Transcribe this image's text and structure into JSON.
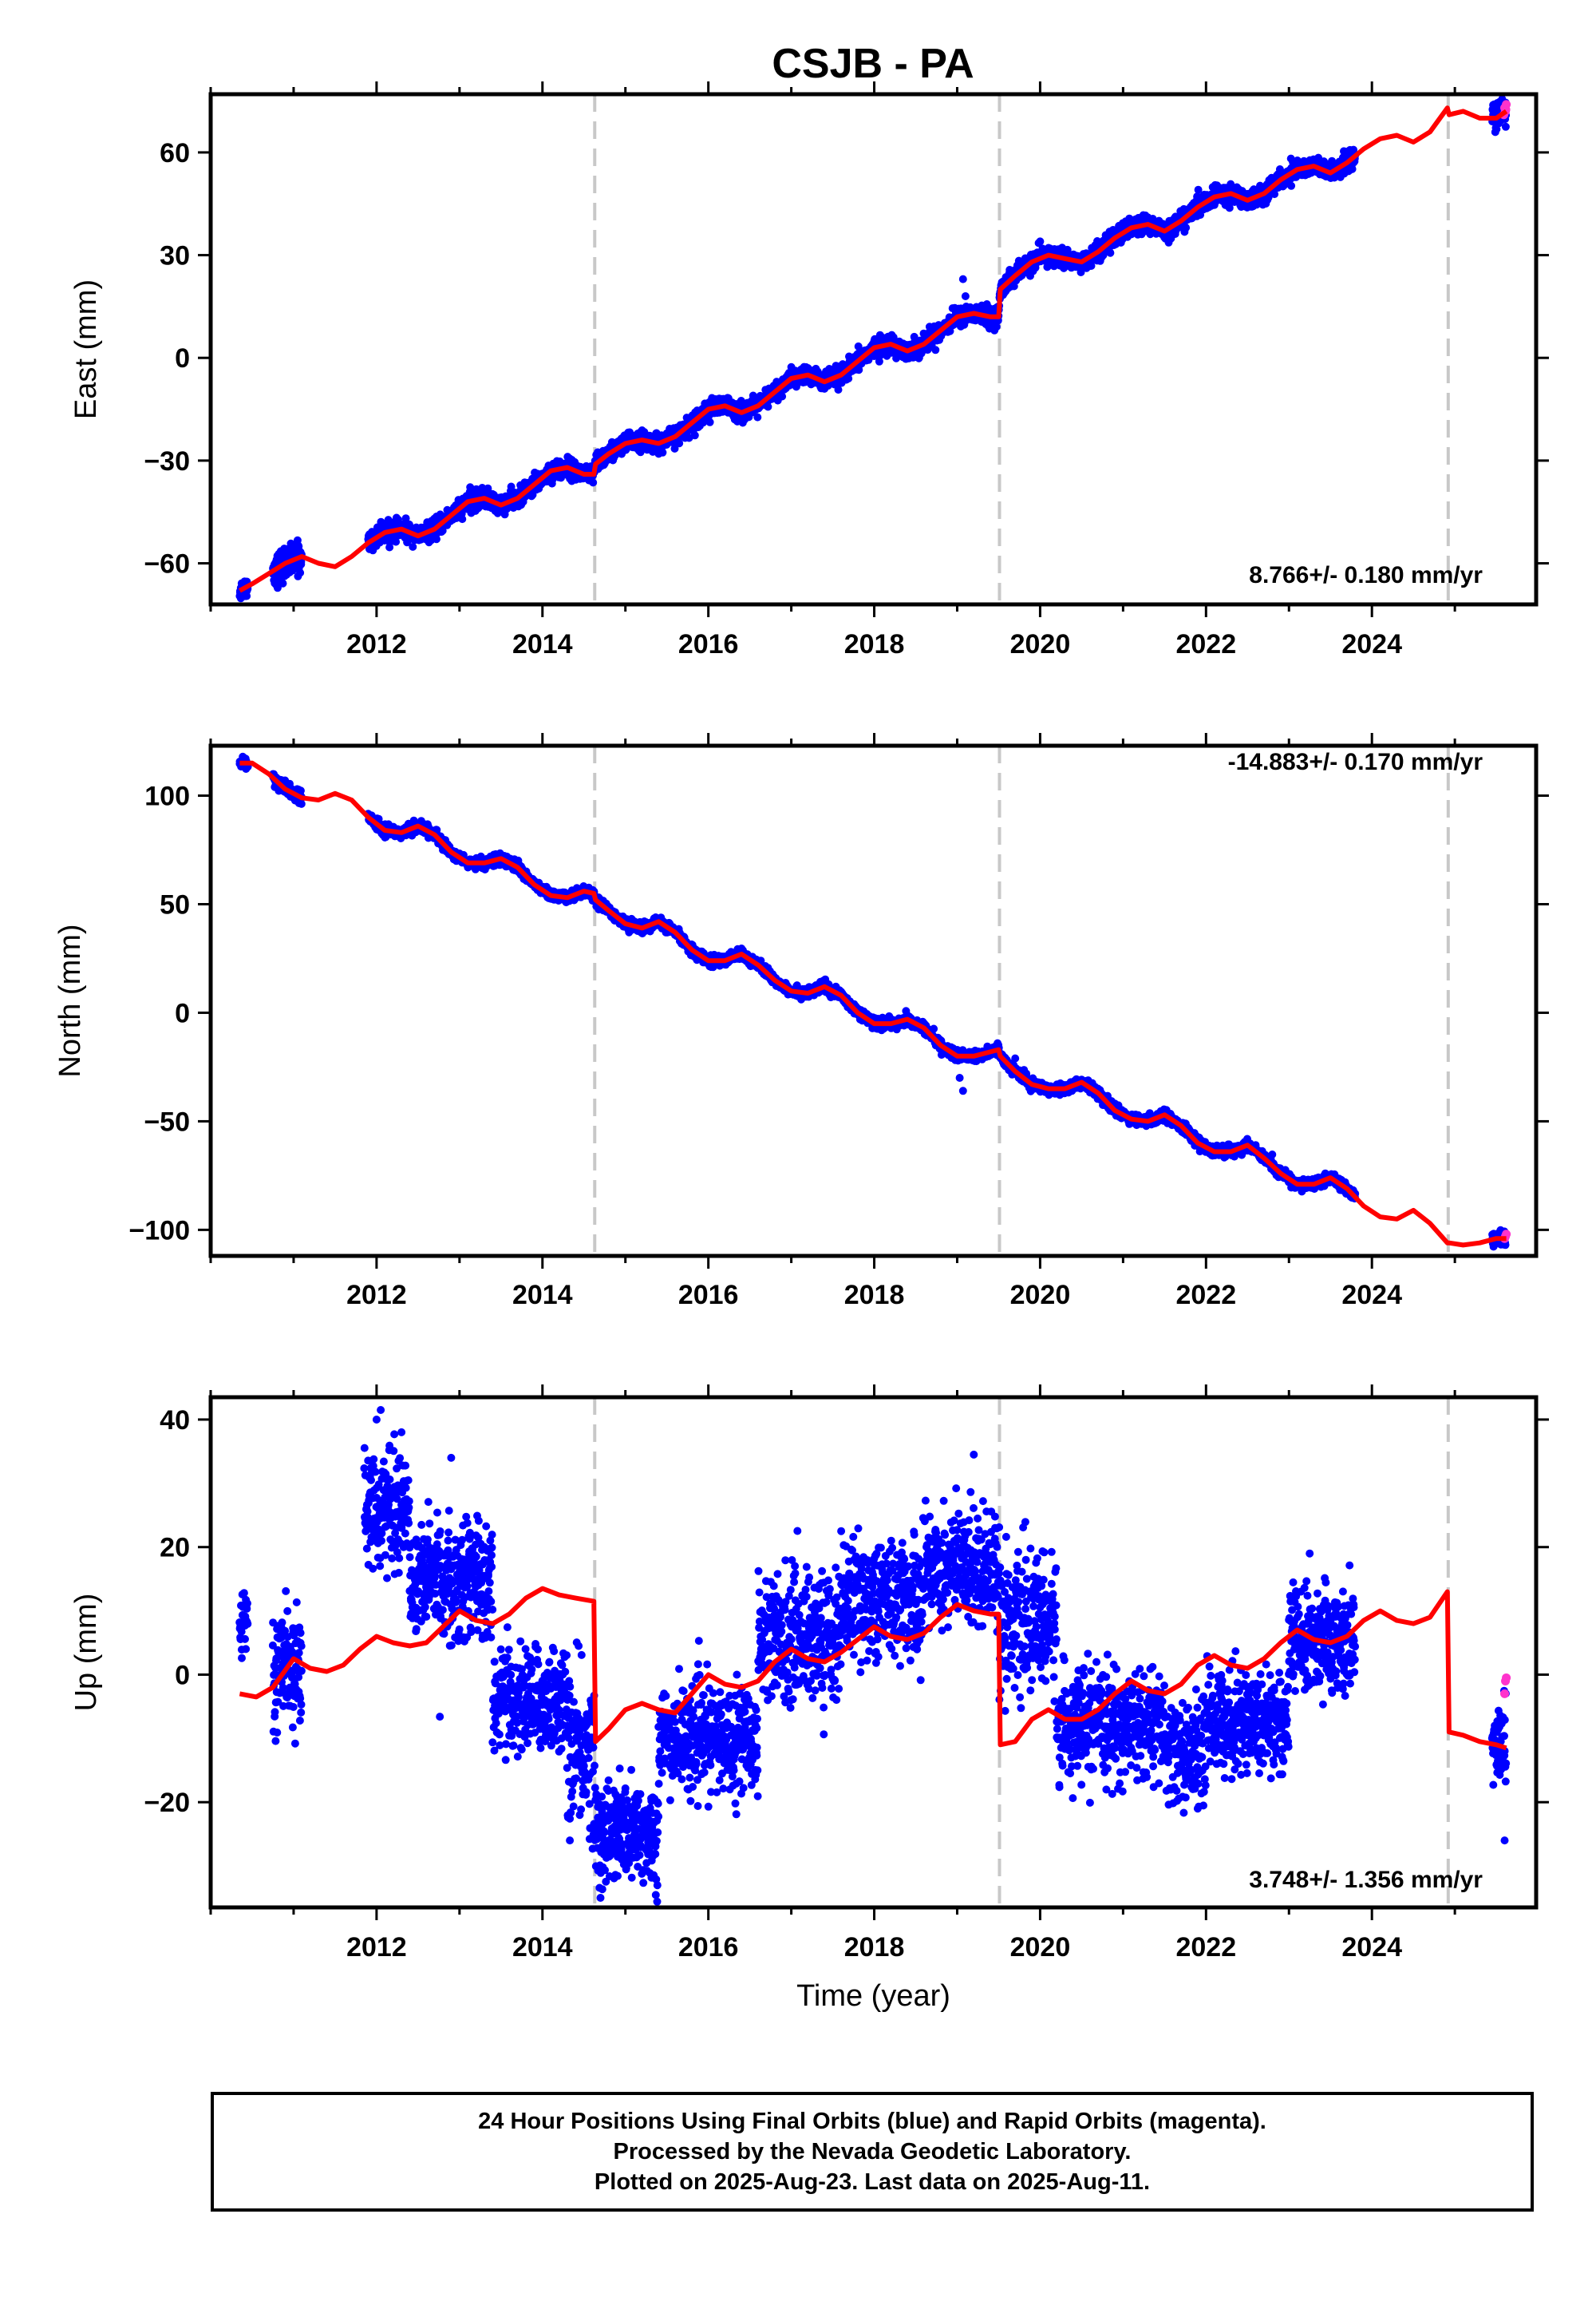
{
  "title": "CSJB - PA",
  "footer": {
    "line1": "24 Hour Positions Using Final Orbits (blue) and Rapid Orbits (magenta).",
    "line2": "Processed by the Nevada Geodetic Laboratory.",
    "line3": "Plotted on 2025-Aug-23. Last data on 2025-Aug-11."
  },
  "colors": {
    "final": "#0000ff",
    "rapid": "#ff33cc",
    "model": "#ff0000",
    "steps": "#c8c8c8"
  },
  "chart_data": [
    {
      "type": "scatter",
      "id": "east",
      "ylabel": "East (mm)",
      "xlabel": "",
      "xlim": [
        2010.0,
        2025.98
      ],
      "ylim": [
        -72,
        77
      ],
      "xticks": [
        2012,
        2014,
        2016,
        2018,
        2020,
        2022,
        2024
      ],
      "yticks": [
        -60,
        -30,
        0,
        30,
        60
      ],
      "ytick_labels": [
        "−60",
        "−30",
        "0",
        "30",
        "60"
      ],
      "rate_label": "8.766+/- 0.180 mm/yr",
      "steps": [
        2014.63,
        2019.51,
        2024.92
      ],
      "model": {
        "x": [
          2010.35,
          2010.5,
          2010.7,
          2010.9,
          2011.1,
          2011.3,
          2011.5,
          2011.7,
          2011.9,
          2012.1,
          2012.3,
          2012.5,
          2012.7,
          2012.9,
          2013.1,
          2013.3,
          2013.5,
          2013.7,
          2013.9,
          2014.1,
          2014.3,
          2014.5,
          2014.62,
          2014.64,
          2014.8,
          2015.0,
          2015.2,
          2015.4,
          2015.6,
          2015.8,
          2016.0,
          2016.2,
          2016.4,
          2016.6,
          2016.8,
          2017.0,
          2017.2,
          2017.4,
          2017.6,
          2017.8,
          2018.0,
          2018.2,
          2018.4,
          2018.6,
          2018.8,
          2019.0,
          2019.2,
          2019.4,
          2019.5,
          2019.52,
          2019.7,
          2019.9,
          2020.1,
          2020.3,
          2020.5,
          2020.7,
          2020.9,
          2021.1,
          2021.3,
          2021.5,
          2021.7,
          2021.9,
          2022.1,
          2022.3,
          2022.5,
          2022.7,
          2022.9,
          2023.1,
          2023.3,
          2023.5,
          2023.7,
          2023.9,
          2024.1,
          2024.3,
          2024.5,
          2024.7,
          2024.91,
          2024.93,
          2025.1,
          2025.3,
          2025.5,
          2025.62
        ],
        "y": [
          -68.0,
          -66.0,
          -63.0,
          -60.0,
          -58.0,
          -60.0,
          -61.0,
          -58.0,
          -54.0,
          -51.0,
          -50.0,
          -52.0,
          -50.0,
          -46.0,
          -42.0,
          -41.0,
          -43.0,
          -41.0,
          -37.0,
          -33.0,
          -32.0,
          -34.0,
          -34.0,
          -31.0,
          -28.0,
          -25.0,
          -24.0,
          -25.0,
          -23.0,
          -19.0,
          -15.0,
          -14.0,
          -16.0,
          -14.0,
          -10.0,
          -6.0,
          -5.0,
          -7.0,
          -5.0,
          -1.0,
          3.0,
          4.0,
          2.0,
          4.0,
          8.0,
          12.0,
          13.0,
          12.0,
          12.0,
          20.0,
          24.0,
          28.0,
          30.0,
          29.0,
          28.0,
          31.0,
          35.0,
          38.0,
          39.0,
          37.0,
          40.0,
          44.0,
          47.0,
          48.0,
          46.0,
          48.0,
          52.0,
          55.0,
          56.0,
          54.0,
          57.0,
          61.0,
          64.0,
          65.0,
          63.0,
          66.0,
          73.0,
          71.0,
          72.0,
          70.0,
          70.0,
          72.0
        ]
      },
      "final_segments": [
        [
          2010.35,
          2010.45,
          -66.5,
          2.5,
          0.0
        ],
        [
          2010.75,
          2011.1,
          -55.5,
          4.0,
          0.0
        ],
        [
          2011.9,
          2023.8,
          -51.0,
          2.2,
          8.766
        ],
        [
          2025.45,
          2025.62,
          -69.0,
          3.5,
          16.0
        ]
      ],
      "rapid_points": {
        "x": [
          2025.59,
          2025.6,
          2025.61,
          2025.62,
          2025.615
        ],
        "y": [
          71.0,
          73.0,
          72.0,
          74.0,
          72.5
        ]
      },
      "anomalies": {
        "x": [
          2019.07,
          2019.1,
          2020.0
        ],
        "y": [
          23.0,
          18.0,
          34.0
        ]
      }
    },
    {
      "type": "scatter",
      "id": "north",
      "ylabel": "North (mm)",
      "xlabel": "",
      "xlim": [
        2010.0,
        2025.98
      ],
      "ylim": [
        -112,
        123
      ],
      "xticks": [
        2012,
        2014,
        2016,
        2018,
        2020,
        2022,
        2024
      ],
      "yticks": [
        -100,
        -50,
        0,
        50,
        100
      ],
      "ytick_labels": [
        "−100",
        "−50",
        "0",
        "50",
        "100"
      ],
      "rate_label": "-14.883+/- 0.170 mm/yr",
      "steps": [
        2014.63,
        2019.51,
        2024.92
      ],
      "model": {
        "x": [
          2010.35,
          2010.5,
          2010.7,
          2010.9,
          2011.1,
          2011.3,
          2011.5,
          2011.7,
          2011.9,
          2012.1,
          2012.3,
          2012.5,
          2012.7,
          2012.9,
          2013.1,
          2013.3,
          2013.5,
          2013.7,
          2013.9,
          2014.1,
          2014.3,
          2014.5,
          2014.62,
          2014.64,
          2014.8,
          2015.0,
          2015.2,
          2015.4,
          2015.6,
          2015.8,
          2016.0,
          2016.2,
          2016.4,
          2016.6,
          2016.8,
          2017.0,
          2017.2,
          2017.4,
          2017.6,
          2017.8,
          2018.0,
          2018.2,
          2018.4,
          2018.6,
          2018.8,
          2019.0,
          2019.2,
          2019.4,
          2019.5,
          2019.52,
          2019.7,
          2019.9,
          2020.1,
          2020.3,
          2020.5,
          2020.7,
          2020.9,
          2021.1,
          2021.3,
          2021.5,
          2021.7,
          2021.9,
          2022.1,
          2022.3,
          2022.5,
          2022.7,
          2022.9,
          2023.1,
          2023.3,
          2023.5,
          2023.7,
          2023.9,
          2024.1,
          2024.3,
          2024.5,
          2024.7,
          2024.91,
          2024.93,
          2025.1,
          2025.3,
          2025.5,
          2025.62
        ],
        "y": [
          115.0,
          115.0,
          110.0,
          103.0,
          99.0,
          98.0,
          101.0,
          98.0,
          90.0,
          84.0,
          83.0,
          86.0,
          82.0,
          74.0,
          69.0,
          69.0,
          71.0,
          67.0,
          59.0,
          54.0,
          53.0,
          56.0,
          55.0,
          52.0,
          47.0,
          41.0,
          39.0,
          42.0,
          37.0,
          29.0,
          24.0,
          24.0,
          27.0,
          22.0,
          15.0,
          10.0,
          9.0,
          12.0,
          8.0,
          0.0,
          -5.0,
          -5.0,
          -3.0,
          -7.0,
          -15.0,
          -20.0,
          -20.0,
          -18.0,
          -17.0,
          -20.0,
          -27.0,
          -33.0,
          -35.0,
          -35.0,
          -32.0,
          -37.0,
          -45.0,
          -49.0,
          -50.0,
          -47.0,
          -52.0,
          -60.0,
          -64.0,
          -64.0,
          -61.0,
          -67.0,
          -74.0,
          -79.0,
          -79.0,
          -76.0,
          -81.0,
          -89.0,
          -94.0,
          -95.0,
          -91.0,
          -97.0,
          -106.0,
          -106.0,
          -107.0,
          -106.0,
          -104.0,
          -104.0
        ]
      },
      "final_segments": [
        [
          2010.35,
          2010.45,
          115.0,
          2.5,
          0.0
        ],
        [
          2010.75,
          2011.1,
          99.5,
          2.5,
          0.0
        ],
        [
          2011.9,
          2023.8,
          86.5,
          2.0,
          -14.883
        ],
        [
          2025.45,
          2025.62,
          -104.5,
          2.5,
          0.0
        ]
      ],
      "rapid_points": {
        "x": [
          2025.6,
          2025.61,
          2025.62
        ],
        "y": [
          -104.0,
          -103.0,
          -102.0
        ]
      },
      "anomalies": {
        "x": [
          2019.03,
          2019.07,
          2019.7
        ],
        "y": [
          -30.0,
          -36.0,
          -21.0
        ]
      }
    },
    {
      "type": "scatter",
      "id": "up",
      "ylabel": "Up (mm)",
      "xlabel": "Time (year)",
      "xlim": [
        2010.0,
        2025.98
      ],
      "ylim": [
        -36.5,
        43.5
      ],
      "xticks": [
        2012,
        2014,
        2016,
        2018,
        2020,
        2022,
        2024
      ],
      "yticks": [
        -20,
        0,
        20,
        40
      ],
      "ytick_labels": [
        "−20",
        "0",
        "20",
        "40"
      ],
      "rate_label": "3.748+/- 1.356 mm/yr",
      "steps": [
        2014.63,
        2019.51,
        2024.92
      ],
      "model": {
        "x": [
          2010.35,
          2010.55,
          2010.75,
          2011.0,
          2011.2,
          2011.4,
          2011.6,
          2011.8,
          2012.0,
          2012.2,
          2012.4,
          2012.6,
          2012.8,
          2013.0,
          2013.2,
          2013.4,
          2013.6,
          2013.8,
          2014.0,
          2014.2,
          2014.4,
          2014.62,
          2014.64,
          2014.8,
          2015.0,
          2015.2,
          2015.4,
          2015.6,
          2015.8,
          2016.0,
          2016.2,
          2016.4,
          2016.6,
          2016.8,
          2017.0,
          2017.2,
          2017.4,
          2017.6,
          2017.8,
          2018.0,
          2018.2,
          2018.4,
          2018.6,
          2018.8,
          2019.0,
          2019.2,
          2019.4,
          2019.5,
          2019.52,
          2019.7,
          2019.9,
          2020.1,
          2020.3,
          2020.5,
          2020.7,
          2020.9,
          2021.1,
          2021.3,
          2021.5,
          2021.7,
          2021.9,
          2022.1,
          2022.3,
          2022.5,
          2022.7,
          2022.9,
          2023.1,
          2023.3,
          2023.5,
          2023.7,
          2023.9,
          2024.1,
          2024.3,
          2024.5,
          2024.7,
          2024.91,
          2024.93,
          2025.1,
          2025.3,
          2025.5,
          2025.62
        ],
        "y": [
          -3.0,
          -3.5,
          -2.0,
          2.5,
          1.0,
          0.5,
          1.5,
          4.0,
          6.0,
          5.0,
          4.5,
          5.0,
          7.5,
          10.0,
          8.5,
          8.0,
          9.5,
          12.0,
          13.5,
          12.5,
          12.0,
          11.5,
          -10.5,
          -8.5,
          -5.5,
          -4.5,
          -5.5,
          -6.0,
          -3.0,
          0.0,
          -1.5,
          -2.0,
          -1.0,
          2.0,
          4.0,
          2.5,
          2.0,
          3.5,
          5.5,
          7.5,
          6.0,
          5.5,
          6.5,
          9.0,
          11.0,
          10.0,
          9.5,
          9.5,
          -11.0,
          -10.5,
          -7.0,
          -5.5,
          -7.0,
          -7.0,
          -5.5,
          -3.0,
          -1.0,
          -2.5,
          -3.0,
          -1.5,
          1.5,
          3.0,
          1.5,
          1.0,
          2.5,
          5.0,
          7.0,
          5.5,
          5.0,
          6.0,
          8.5,
          10.0,
          8.5,
          8.0,
          9.0,
          13.0,
          -9.0,
          -9.5,
          -10.5,
          -11.0,
          -11.5
        ]
      },
      "final_segments": [
        [
          2010.35,
          2010.45,
          8.0,
          4.0,
          0.0
        ],
        [
          2010.75,
          2011.1,
          2.0,
          5.0,
          0.0
        ],
        [
          2011.85,
          2012.4,
          26.0,
          4.0,
          0.0
        ],
        [
          2012.4,
          2013.4,
          15.0,
          4.5,
          0.0
        ],
        [
          2013.4,
          2014.3,
          -4.0,
          4.0,
          0.0
        ],
        [
          2014.3,
          2014.63,
          -12.0,
          6.0,
          0.0
        ],
        [
          2014.63,
          2015.4,
          -25.0,
          4.0,
          0.0
        ],
        [
          2015.4,
          2016.6,
          -10.0,
          4.0,
          0.0
        ],
        [
          2016.6,
          2017.6,
          6.0,
          5.0,
          0.0
        ],
        [
          2017.6,
          2018.6,
          12.0,
          4.5,
          0.0
        ],
        [
          2018.6,
          2019.51,
          17.0,
          4.5,
          0.0
        ],
        [
          2019.51,
          2020.2,
          8.0,
          5.0,
          0.0
        ],
        [
          2020.2,
          2021.5,
          -8.0,
          4.0,
          0.0
        ],
        [
          2021.5,
          2022.0,
          -12.0,
          4.0,
          0.0
        ],
        [
          2022.0,
          2023.0,
          -7.0,
          4.0,
          0.0
        ],
        [
          2023.0,
          2023.8,
          5.0,
          4.0,
          0.0
        ],
        [
          2025.45,
          2025.62,
          -11.0,
          3.5,
          0.0
        ]
      ],
      "rapid_points": {
        "x": [
          2025.6,
          2025.61,
          2025.62
        ],
        "y": [
          -3.0,
          -1.0,
          -0.5
        ]
      },
      "anomalies": {
        "x": [
          2012.0,
          2012.05,
          2012.3,
          2012.9,
          2014.33,
          2014.45,
          2014.7,
          2019.2,
          2021.9,
          2023.25,
          2025.6
        ],
        "y": [
          40.0,
          41.5,
          38.0,
          34.0,
          -26.0,
          -22.0,
          -35.0,
          34.5,
          -21.0,
          19.0,
          -26.0
        ]
      }
    }
  ]
}
